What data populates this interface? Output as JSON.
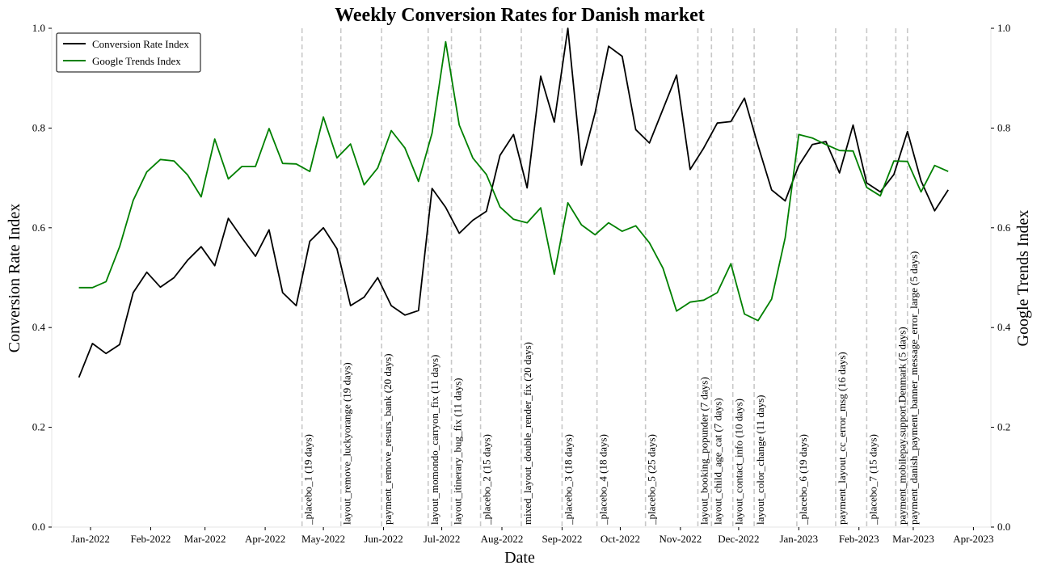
{
  "chart_data": {
    "type": "line",
    "title": "Weekly Conversion Rates for Danish market",
    "xlabel": "Date",
    "ylabel": "Conversion Rate Index",
    "y2label": "Google Trends Index",
    "ylim": [
      0,
      1
    ],
    "y2lim": [
      0,
      1
    ],
    "yticks": [
      "0.0",
      "0.2",
      "0.4",
      "0.6",
      "0.8",
      "1.0"
    ],
    "xlim": [
      "2021-12-12",
      "2023-04-10"
    ],
    "xticks": [
      {
        "date": "2022-01-01",
        "label": "Jan-2022"
      },
      {
        "date": "2022-02-01",
        "label": "Feb-2022"
      },
      {
        "date": "2022-03-01",
        "label": "Mar-2022"
      },
      {
        "date": "2022-04-01",
        "label": "Apr-2022"
      },
      {
        "date": "2022-05-01",
        "label": "May-2022"
      },
      {
        "date": "2022-06-01",
        "label": "Jun-2022"
      },
      {
        "date": "2022-07-01",
        "label": "Jul-2022"
      },
      {
        "date": "2022-08-01",
        "label": "Aug-2022"
      },
      {
        "date": "2022-09-01",
        "label": "Sep-2022"
      },
      {
        "date": "2022-10-01",
        "label": "Oct-2022"
      },
      {
        "date": "2022-11-01",
        "label": "Nov-2022"
      },
      {
        "date": "2022-12-01",
        "label": "Dec-2022"
      },
      {
        "date": "2023-01-01",
        "label": "Jan-2023"
      },
      {
        "date": "2023-02-01",
        "label": "Feb-2023"
      },
      {
        "date": "2023-03-01",
        "label": "Mar-2023"
      },
      {
        "date": "2023-04-01",
        "label": "Apr-2023"
      }
    ],
    "legend_position": "top-left",
    "grid": false,
    "series": [
      {
        "name": "Conversion Rate Index",
        "color": "#000000",
        "axis": "left",
        "points": [
          [
            "2021-12-26",
            0.3
          ],
          [
            "2022-01-02",
            0.368
          ],
          [
            "2022-01-09",
            0.348
          ],
          [
            "2022-01-16",
            0.366
          ],
          [
            "2022-01-23",
            0.47
          ],
          [
            "2022-01-30",
            0.511
          ],
          [
            "2022-02-06",
            0.481
          ],
          [
            "2022-02-13",
            0.5
          ],
          [
            "2022-02-20",
            0.535
          ],
          [
            "2022-02-27",
            0.562
          ],
          [
            "2022-03-06",
            0.524
          ],
          [
            "2022-03-13",
            0.619
          ],
          [
            "2022-03-20",
            0.58
          ],
          [
            "2022-03-27",
            0.543
          ],
          [
            "2022-04-03",
            0.596
          ],
          [
            "2022-04-10",
            0.47
          ],
          [
            "2022-04-17",
            0.444
          ],
          [
            "2022-04-24",
            0.573
          ],
          [
            "2022-05-01",
            0.6
          ],
          [
            "2022-05-08",
            0.558
          ],
          [
            "2022-05-15",
            0.444
          ],
          [
            "2022-05-22",
            0.461
          ],
          [
            "2022-05-29",
            0.5
          ],
          [
            "2022-06-05",
            0.444
          ],
          [
            "2022-06-12",
            0.425
          ],
          [
            "2022-06-19",
            0.434
          ],
          [
            "2022-06-26",
            0.679
          ],
          [
            "2022-07-03",
            0.641
          ],
          [
            "2022-07-10",
            0.589
          ],
          [
            "2022-07-17",
            0.615
          ],
          [
            "2022-07-24",
            0.633
          ],
          [
            "2022-07-31",
            0.745
          ],
          [
            "2022-08-07",
            0.787
          ],
          [
            "2022-08-14",
            0.68
          ],
          [
            "2022-08-21",
            0.904
          ],
          [
            "2022-08-28",
            0.812
          ],
          [
            "2022-09-04",
            1.0
          ],
          [
            "2022-09-11",
            0.726
          ],
          [
            "2022-09-18",
            0.83
          ],
          [
            "2022-09-25",
            0.964
          ],
          [
            "2022-10-02",
            0.944
          ],
          [
            "2022-10-09",
            0.797
          ],
          [
            "2022-10-16",
            0.77
          ],
          [
            "2022-10-23",
            0.838
          ],
          [
            "2022-10-30",
            0.906
          ],
          [
            "2022-11-06",
            0.717
          ],
          [
            "2022-11-13",
            0.76
          ],
          [
            "2022-11-20",
            0.81
          ],
          [
            "2022-11-27",
            0.813
          ],
          [
            "2022-12-04",
            0.86
          ],
          [
            "2022-12-11",
            0.765
          ],
          [
            "2022-12-18",
            0.676
          ],
          [
            "2022-12-25",
            0.654
          ],
          [
            "2023-01-01",
            0.725
          ],
          [
            "2023-01-08",
            0.767
          ],
          [
            "2023-01-15",
            0.773
          ],
          [
            "2023-01-22",
            0.71
          ],
          [
            "2023-01-29",
            0.806
          ],
          [
            "2023-02-05",
            0.69
          ],
          [
            "2023-02-12",
            0.672
          ],
          [
            "2023-02-19",
            0.707
          ],
          [
            "2023-02-26",
            0.793
          ],
          [
            "2023-03-05",
            0.694
          ],
          [
            "2023-03-12",
            0.634
          ],
          [
            "2023-03-19",
            0.676
          ]
        ]
      },
      {
        "name": "Google Trends Index",
        "color": "#008000",
        "axis": "right",
        "points": [
          [
            "2021-12-26",
            0.48
          ],
          [
            "2022-01-02",
            0.48
          ],
          [
            "2022-01-09",
            0.492
          ],
          [
            "2022-01-16",
            0.562
          ],
          [
            "2022-01-23",
            0.655
          ],
          [
            "2022-01-30",
            0.712
          ],
          [
            "2022-02-06",
            0.737
          ],
          [
            "2022-02-13",
            0.734
          ],
          [
            "2022-02-20",
            0.706
          ],
          [
            "2022-02-27",
            0.662
          ],
          [
            "2022-03-06",
            0.778
          ],
          [
            "2022-03-13",
            0.698
          ],
          [
            "2022-03-20",
            0.723
          ],
          [
            "2022-03-27",
            0.723
          ],
          [
            "2022-04-03",
            0.799
          ],
          [
            "2022-04-10",
            0.729
          ],
          [
            "2022-04-17",
            0.728
          ],
          [
            "2022-04-24",
            0.713
          ],
          [
            "2022-05-01",
            0.822
          ],
          [
            "2022-05-08",
            0.74
          ],
          [
            "2022-05-15",
            0.768
          ],
          [
            "2022-05-22",
            0.686
          ],
          [
            "2022-05-29",
            0.72
          ],
          [
            "2022-06-05",
            0.795
          ],
          [
            "2022-06-12",
            0.76
          ],
          [
            "2022-06-19",
            0.693
          ],
          [
            "2022-06-26",
            0.79
          ],
          [
            "2022-07-03",
            0.973
          ],
          [
            "2022-07-10",
            0.806
          ],
          [
            "2022-07-17",
            0.74
          ],
          [
            "2022-07-24",
            0.707
          ],
          [
            "2022-07-31",
            0.642
          ],
          [
            "2022-08-07",
            0.617
          ],
          [
            "2022-08-14",
            0.61
          ],
          [
            "2022-08-21",
            0.64
          ],
          [
            "2022-08-28",
            0.507
          ],
          [
            "2022-09-04",
            0.65
          ],
          [
            "2022-09-11",
            0.606
          ],
          [
            "2022-09-18",
            0.586
          ],
          [
            "2022-09-25",
            0.61
          ],
          [
            "2022-10-02",
            0.593
          ],
          [
            "2022-10-09",
            0.604
          ],
          [
            "2022-10-16",
            0.57
          ],
          [
            "2022-10-23",
            0.519
          ],
          [
            "2022-10-30",
            0.433
          ],
          [
            "2022-11-06",
            0.451
          ],
          [
            "2022-11-13",
            0.455
          ],
          [
            "2022-11-20",
            0.47
          ],
          [
            "2022-11-27",
            0.528
          ],
          [
            "2022-12-04",
            0.427
          ],
          [
            "2022-12-11",
            0.414
          ],
          [
            "2022-12-18",
            0.457
          ],
          [
            "2022-12-25",
            0.58
          ],
          [
            "2023-01-01",
            0.787
          ],
          [
            "2023-01-08",
            0.78
          ],
          [
            "2023-01-15",
            0.767
          ],
          [
            "2023-01-22",
            0.755
          ],
          [
            "2023-01-29",
            0.754
          ],
          [
            "2023-02-05",
            0.681
          ],
          [
            "2023-02-12",
            0.664
          ],
          [
            "2023-02-19",
            0.734
          ],
          [
            "2023-02-26",
            0.733
          ],
          [
            "2023-03-05",
            0.672
          ],
          [
            "2023-03-12",
            0.725
          ],
          [
            "2023-03-19",
            0.713
          ]
        ]
      }
    ],
    "annotations": [
      {
        "date": "2022-04-20",
        "label": "_placebo_1 (19 days)"
      },
      {
        "date": "2022-05-10",
        "label": "layout_remove_luckyorange (19 days)"
      },
      {
        "date": "2022-05-31",
        "label": "payment_remove_resurs_bank (20 days)"
      },
      {
        "date": "2022-06-24",
        "label": "layout_momondo_carryon_fix (11 days)"
      },
      {
        "date": "2022-07-06",
        "label": "layout_itinerary_bug_fix (11 days)"
      },
      {
        "date": "2022-07-21",
        "label": "_placebo_2 (15 days)"
      },
      {
        "date": "2022-08-11",
        "label": "mixed_layout_double_render_fix (20 days)"
      },
      {
        "date": "2022-09-01",
        "label": "_placebo_3 (18 days)"
      },
      {
        "date": "2022-09-19",
        "label": "_placebo_4 (18 days)"
      },
      {
        "date": "2022-10-14",
        "label": "_placebo_5 (25 days)"
      },
      {
        "date": "2022-11-10",
        "label": "layout_booking_popunder (7 days)"
      },
      {
        "date": "2022-11-17",
        "label": "layout_child_age_cat (7 days)"
      },
      {
        "date": "2022-11-28",
        "label": "layout_contact_info (10 days)"
      },
      {
        "date": "2022-12-09",
        "label": "layout_color_change (11 days)"
      },
      {
        "date": "2022-12-31",
        "label": "_placebo_6 (19 days)"
      },
      {
        "date": "2023-01-20",
        "label": "payment_layout_cc_error_msg (16 days)"
      },
      {
        "date": "2023-02-05",
        "label": "_placebo_7 (15 days)"
      },
      {
        "date": "2023-02-20",
        "label": "payment_mobilepay.support.Denmark (5 days)"
      },
      {
        "date": "2023-02-26",
        "label": "payment_danish_payment_banner_message_error_large (5 days)"
      }
    ]
  }
}
